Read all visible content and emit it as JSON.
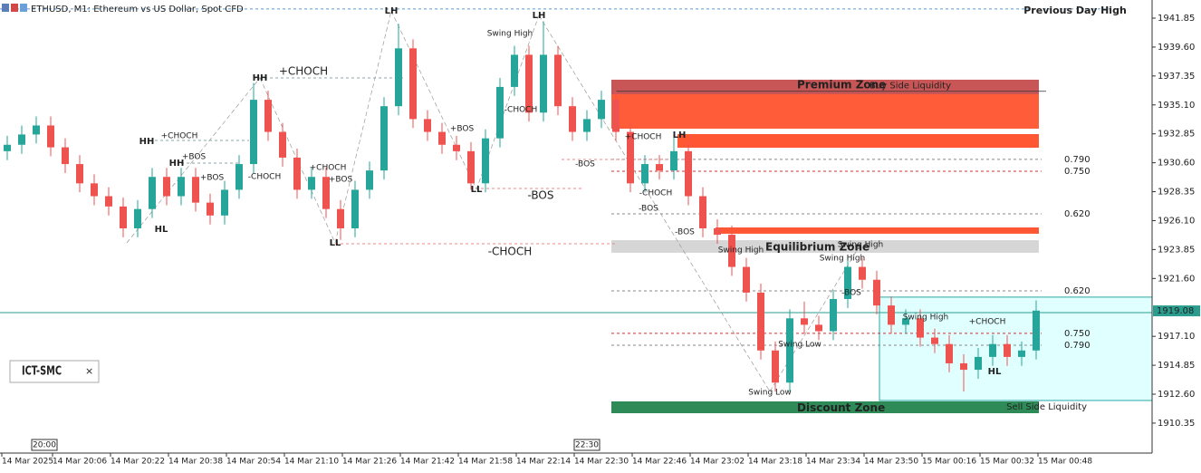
{
  "window": {
    "title": "ETHUSD, M1:  Ethereum vs US Dollar, Spot CFD",
    "indicator": "ICT-SMC"
  },
  "chart_data": {
    "type": "candlestick",
    "up_color": "#26a69a",
    "down_color": "#ef5350",
    "candles": [
      [
        1931.5,
        1932.7,
        1930.8,
        1932.0
      ],
      [
        1932.0,
        1933.5,
        1931.3,
        1932.8
      ],
      [
        1932.8,
        1934.2,
        1932.1,
        1933.5
      ],
      [
        1933.5,
        1934.2,
        1931.1,
        1931.8
      ],
      [
        1931.8,
        1932.5,
        1929.8,
        1930.5
      ],
      [
        1930.5,
        1931.2,
        1928.3,
        1929.0
      ],
      [
        1929.0,
        1929.7,
        1927.3,
        1928.0
      ],
      [
        1928.0,
        1928.7,
        1926.5,
        1927.2
      ],
      [
        1927.2,
        1927.9,
        1924.8,
        1925.5
      ],
      [
        1925.5,
        1927.7,
        1924.8,
        1927.0
      ],
      [
        1927.0,
        1930.2,
        1926.3,
        1929.5
      ],
      [
        1929.5,
        1930.2,
        1927.3,
        1928.0
      ],
      [
        1928.0,
        1930.2,
        1927.3,
        1929.5
      ],
      [
        1929.5,
        1930.2,
        1926.8,
        1927.5
      ],
      [
        1927.5,
        1928.2,
        1925.8,
        1926.5
      ],
      [
        1926.5,
        1929.2,
        1925.8,
        1928.5
      ],
      [
        1928.5,
        1931.2,
        1927.8,
        1930.5
      ],
      [
        1930.5,
        1936.8,
        1929.8,
        1935.5
      ],
      [
        1935.5,
        1936.2,
        1932.3,
        1933.0
      ],
      [
        1933.0,
        1933.7,
        1930.3,
        1931.0
      ],
      [
        1931.0,
        1931.7,
        1927.8,
        1928.5
      ],
      [
        1928.5,
        1930.2,
        1927.8,
        1929.5
      ],
      [
        1929.5,
        1930.2,
        1926.3,
        1927.0
      ],
      [
        1927.0,
        1927.7,
        1924.6,
        1925.5
      ],
      [
        1925.5,
        1929.2,
        1924.8,
        1928.5
      ],
      [
        1928.5,
        1930.7,
        1927.8,
        1930.0
      ],
      [
        1930.0,
        1935.7,
        1929.3,
        1935.0
      ],
      [
        1935.0,
        1941.4,
        1934.3,
        1939.5
      ],
      [
        1939.5,
        1940.2,
        1933.3,
        1934.0
      ],
      [
        1934.0,
        1934.7,
        1932.3,
        1933.0
      ],
      [
        1933.0,
        1933.7,
        1931.3,
        1932.0
      ],
      [
        1932.0,
        1932.7,
        1930.8,
        1931.5
      ],
      [
        1931.5,
        1932.2,
        1928.5,
        1929.0
      ],
      [
        1929.0,
        1933.2,
        1928.3,
        1932.5
      ],
      [
        1932.5,
        1937.2,
        1931.8,
        1936.5
      ],
      [
        1936.5,
        1939.7,
        1935.8,
        1939.0
      ],
      [
        1939.0,
        1939.7,
        1933.8,
        1934.5
      ],
      [
        1934.5,
        1941.6,
        1933.8,
        1939.0
      ],
      [
        1939.0,
        1939.7,
        1934.3,
        1935.0
      ],
      [
        1935.0,
        1935.7,
        1932.3,
        1933.0
      ],
      [
        1933.0,
        1934.7,
        1932.3,
        1934.0
      ],
      [
        1934.0,
        1936.2,
        1933.3,
        1935.5
      ],
      [
        1935.5,
        1936.2,
        1932.3,
        1933.0
      ],
      [
        1933.0,
        1933.7,
        1928.3,
        1929.0
      ],
      [
        1929.0,
        1931.2,
        1928.3,
        1930.5
      ],
      [
        1930.5,
        1931.2,
        1929.3,
        1930.0
      ],
      [
        1930.0,
        1932.8,
        1929.3,
        1931.5
      ],
      [
        1931.5,
        1932.2,
        1927.3,
        1928.0
      ],
      [
        1928.0,
        1928.7,
        1924.8,
        1925.5
      ],
      [
        1925.5,
        1926.2,
        1924.3,
        1925.0
      ],
      [
        1925.0,
        1925.7,
        1921.8,
        1922.5
      ],
      [
        1922.5,
        1923.2,
        1919.8,
        1920.5
      ],
      [
        1920.5,
        1921.2,
        1915.3,
        1916.0
      ],
      [
        1916.0,
        1916.7,
        1912.8,
        1913.5
      ],
      [
        1913.5,
        1919.2,
        1912.8,
        1918.5
      ],
      [
        1918.5,
        1919.8,
        1917.3,
        1918.0
      ],
      [
        1918.0,
        1918.7,
        1916.8,
        1917.5
      ],
      [
        1917.5,
        1920.7,
        1916.8,
        1920.0
      ],
      [
        1920.0,
        1923.4,
        1919.3,
        1922.5
      ],
      [
        1922.5,
        1923.2,
        1920.8,
        1921.5
      ],
      [
        1921.5,
        1922.2,
        1918.8,
        1919.5
      ],
      [
        1919.5,
        1920.2,
        1917.3,
        1918.0
      ],
      [
        1918.0,
        1919.2,
        1917.3,
        1918.5
      ],
      [
        1918.5,
        1919.2,
        1916.3,
        1917.0
      ],
      [
        1917.0,
        1917.7,
        1915.8,
        1916.5
      ],
      [
        1916.5,
        1917.2,
        1914.3,
        1915.0
      ],
      [
        1915.0,
        1915.7,
        1912.8,
        1914.5
      ],
      [
        1914.5,
        1916.2,
        1913.8,
        1915.5
      ],
      [
        1915.5,
        1917.2,
        1914.8,
        1916.5
      ],
      [
        1916.5,
        1917.2,
        1914.8,
        1915.5
      ],
      [
        1915.5,
        1916.7,
        1914.8,
        1916.0
      ],
      [
        1916.0,
        1919.9,
        1915.3,
        1919.1
      ]
    ],
    "ylim": [
      1908.02,
      1943.26
    ],
    "yticks": [
      1941.85,
      {
        "value": 1939.6,
        "label": "1939.60"
      },
      1937.35,
      {
        "value": 1935.1,
        "label": "1935.10"
      },
      1932.85,
      {
        "value": 1930.6,
        "label": "1930.60"
      },
      1928.35,
      {
        "value": 1926.1,
        "label": "1926.10"
      },
      1923.85,
      {
        "value": 1921.6,
        "label": "1921.60"
      },
      {
        "value": 1917.1,
        "label": "1917.10"
      },
      1914.85,
      {
        "value": 1912.6,
        "label": "1912.60"
      },
      1910.35
    ],
    "current_price": 1919.08,
    "x_labels": [
      "14 Mar 2025",
      "14 Mar 20:06",
      "14 Mar 20:22",
      "14 Mar 20:38",
      "14 Mar 20:54",
      "14 Mar 21:10",
      "14 Mar 21:26",
      "14 Mar 21:42",
      "14 Mar 21:58",
      "14 Mar 22:14",
      "14 Mar 22:30",
      "14 Mar 22:46",
      "14 Mar 23:02",
      "14 Mar 23:18",
      "14 Mar 23:34",
      "14 Mar 23:50",
      "15 Mar 00:16",
      "15 Mar 00:32",
      "15 Mar 00:48"
    ],
    "x_markers": [
      "20:00",
      "22:30"
    ],
    "previous_day_high": {
      "label": "Previous Day High",
      "price": 1942.56
    },
    "zones": [
      {
        "label": "Premium Zone",
        "top": 1937.06,
        "bottom": 1933.25,
        "color": "#ff5c3a"
      },
      {
        "top": 1932.83,
        "bottom": 1931.77,
        "color": "#ff5733"
      },
      {
        "top": 1925.57,
        "bottom": 1925.08,
        "color": "#ff5733"
      },
      {
        "label": "Equilibrium Zone",
        "top": 1924.58,
        "bottom": 1923.6,
        "color": "#d6d6d6"
      },
      {
        "top": 1920.15,
        "bottom": 1912.11,
        "color": "#e0ffff"
      },
      {
        "label": "Discount Zone",
        "top": 1912.04,
        "bottom": 1911.12,
        "color": "#2e8b57"
      }
    ],
    "liquidity": [
      {
        "label": "Buy Side Liquidity",
        "price": 1936.16
      },
      {
        "label": "Sell Side Liquidity",
        "price": 1911.6
      }
    ],
    "levels": [
      {
        "label": "0.790",
        "price": 1930.86,
        "color": "#888888"
      },
      {
        "label": "0.750",
        "price": 1929.94,
        "color": "#d32f2f"
      },
      {
        "label": "0.620",
        "price": 1926.63,
        "color": "#888888"
      },
      {
        "label": "0.620",
        "price": 1920.64,
        "color": "#888888"
      },
      {
        "label": "0.750",
        "price": 1917.33,
        "color": "#d32f2f"
      },
      {
        "label": "0.790",
        "price": 1916.41,
        "color": "#888888"
      }
    ],
    "annotations": [
      {
        "text": "+CHOCH",
        "color": "#6b9494"
      },
      {
        "text": "-BOS",
        "color": "#e06666"
      },
      {
        "text": "-CHOCH",
        "color": "#e06666"
      },
      {
        "text": "Swing High",
        "color": "#6b9494"
      },
      {
        "text": "Swing High",
        "color": "#6b9494"
      },
      {
        "text": "Swing High",
        "color": "#6b9494"
      },
      {
        "text": "Swing High",
        "color": "#6b9494"
      },
      {
        "text": "Swing High",
        "color": "#6b9494"
      },
      {
        "text": "Swing Low",
        "color": "#e06666"
      },
      {
        "text": "Swing Low",
        "color": "#e06666"
      },
      {
        "text": "+CHOCH",
        "color": "#6b9494"
      },
      {
        "text": "-CHOCH",
        "color": "#e06666"
      },
      {
        "text": "+BOS",
        "color": "#6b9494"
      },
      {
        "text": "+BOS",
        "color": "#6b9494"
      },
      {
        "text": "+CHOCH",
        "color": "#6b9494"
      },
      {
        "text": "+BOS",
        "color": "#6b9494"
      },
      {
        "text": "+BOS",
        "color": "#6b9494"
      },
      {
        "text": "-CHOCH",
        "color": "#e06666"
      },
      {
        "text": "-BOS",
        "color": "#e06666"
      },
      {
        "text": "+CHOCH",
        "color": "#6b9494"
      },
      {
        "text": "-CHOCH",
        "color": "#e06666"
      },
      {
        "text": "-BOS",
        "color": "#e06666"
      },
      {
        "text": "-BOS",
        "color": "#e06666"
      },
      {
        "text": "-BOS",
        "color": "#e06666"
      },
      {
        "text": "+CHOCH",
        "color": "#6b9494"
      },
      {
        "text": "HH",
        "color": "#6b9494"
      },
      {
        "text": "HH",
        "color": "#6b9494"
      },
      {
        "text": "LL",
        "color": "#e06666"
      },
      {
        "text": "LH",
        "color": "#e06666"
      },
      {
        "text": "LH",
        "color": "#e06666"
      },
      {
        "text": "LL",
        "color": "#e06666"
      },
      {
        "text": "HL",
        "color": "#e06666"
      },
      {
        "text": "HH",
        "color": "#6b9494"
      },
      {
        "text": "HL",
        "color": "#e06666"
      },
      {
        "text": "LH",
        "color": "#e06666"
      }
    ]
  }
}
